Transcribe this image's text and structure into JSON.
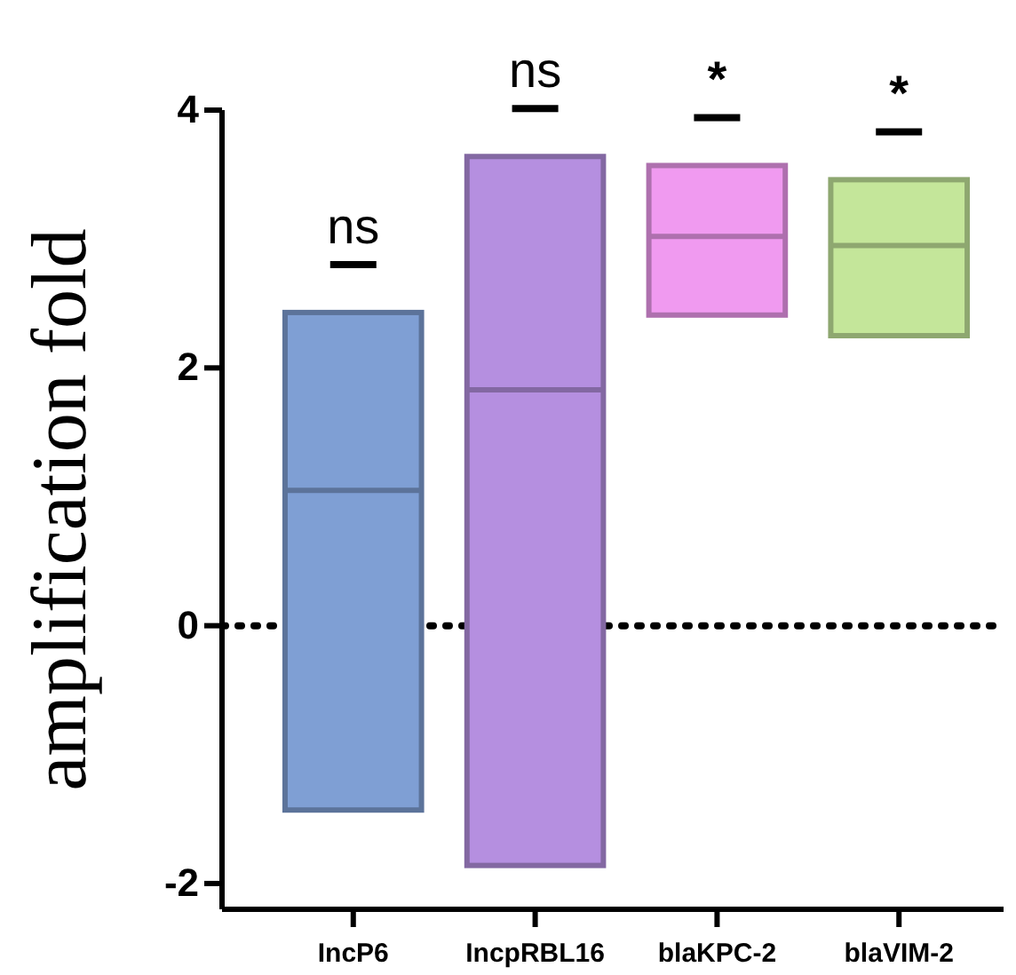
{
  "chart_data": {
    "type": "box",
    "ylabel": "amplification fold",
    "categories": [
      "IncP6",
      "IncpRBL16",
      "blaKPC-2",
      "blaVIM-2"
    ],
    "boxes": [
      {
        "low": -1.43,
        "q1": -1.43,
        "median": 1.05,
        "q3": 2.43,
        "high": 2.43
      },
      {
        "low": -1.86,
        "q1": -1.86,
        "median": 1.83,
        "q3": 3.64,
        "high": 3.64
      },
      {
        "low": 2.41,
        "q1": 2.41,
        "median": 3.02,
        "q3": 3.57,
        "high": 3.57
      },
      {
        "low": 2.25,
        "q1": 2.25,
        "median": 2.95,
        "q3": 3.46,
        "high": 3.46
      }
    ],
    "colors": [
      "#7f9fd4",
      "#b58fe0",
      "#f09af0",
      "#c4e69a"
    ],
    "ylim": [
      -2.2,
      4
    ],
    "yticks": [
      -2,
      0,
      2,
      4
    ],
    "grid": false,
    "ref_lines": [
      {
        "axis": "y",
        "value": 0,
        "line_style": "dotted",
        "color": "#000000"
      }
    ],
    "annotations": [
      "ns",
      "ns",
      "*",
      "*"
    ]
  }
}
